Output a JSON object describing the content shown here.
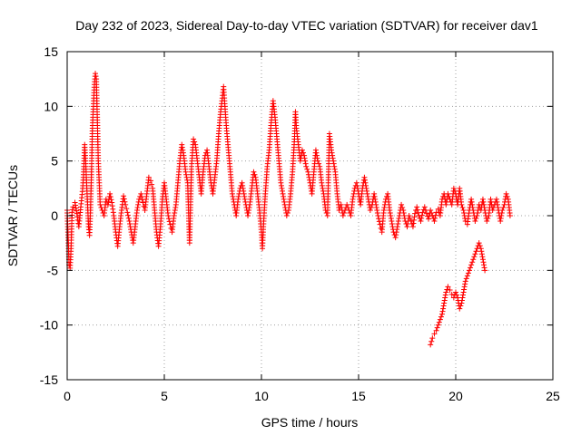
{
  "chart_data": {
    "type": "scatter",
    "title": "Day 232 of 2023, Sidereal Day-to-day VTEC variation (SDTVAR) for receiver dav1",
    "xlabel": "GPS time / hours",
    "ylabel": "SDTVAR / TECUs",
    "xlim": [
      0,
      25
    ],
    "ylim": [
      -15,
      15
    ],
    "xticks": [
      0,
      5,
      10,
      15,
      20,
      25
    ],
    "yticks": [
      -15,
      -10,
      -5,
      0,
      5,
      10,
      15
    ],
    "grid": true,
    "marker": "+",
    "color": "#ff0000",
    "series": [
      {
        "name": "SDTVAR",
        "points": [
          [
            0.0,
            0.5
          ],
          [
            0.05,
            -2.0
          ],
          [
            0.1,
            -4.5
          ],
          [
            0.15,
            -4.8
          ],
          [
            0.2,
            -3.0
          ],
          [
            0.25,
            0.3
          ],
          [
            0.3,
            0.8
          ],
          [
            0.4,
            1.2
          ],
          [
            0.5,
            0.2
          ],
          [
            0.6,
            -1.0
          ],
          [
            0.7,
            0.8
          ],
          [
            0.8,
            2.5
          ],
          [
            0.85,
            4.0
          ],
          [
            0.9,
            6.5
          ],
          [
            0.95,
            5.0
          ],
          [
            1.0,
            3.0
          ],
          [
            1.05,
            1.0
          ],
          [
            1.1,
            -1.0
          ],
          [
            1.15,
            -1.8
          ],
          [
            1.2,
            0.5
          ],
          [
            1.25,
            4.0
          ],
          [
            1.3,
            8.0
          ],
          [
            1.35,
            10.0
          ],
          [
            1.4,
            12.0
          ],
          [
            1.45,
            13.0
          ],
          [
            1.5,
            12.5
          ],
          [
            1.55,
            9.0
          ],
          [
            1.6,
            5.0
          ],
          [
            1.65,
            3.0
          ],
          [
            1.7,
            1.0
          ],
          [
            1.8,
            0.5
          ],
          [
            1.9,
            0.0
          ],
          [
            2.0,
            1.5
          ],
          [
            2.1,
            1.0
          ],
          [
            2.2,
            2.0
          ],
          [
            2.3,
            1.2
          ],
          [
            2.4,
            0.0
          ],
          [
            2.5,
            -1.5
          ],
          [
            2.6,
            -2.8
          ],
          [
            2.7,
            -1.0
          ],
          [
            2.8,
            0.5
          ],
          [
            2.9,
            1.8
          ],
          [
            3.0,
            1.0
          ],
          [
            3.1,
            0.3
          ],
          [
            3.2,
            -0.5
          ],
          [
            3.3,
            -1.5
          ],
          [
            3.4,
            -2.5
          ],
          [
            3.5,
            -1.0
          ],
          [
            3.6,
            0.5
          ],
          [
            3.7,
            1.5
          ],
          [
            3.8,
            2.0
          ],
          [
            3.9,
            1.2
          ],
          [
            4.0,
            0.5
          ],
          [
            4.1,
            2.0
          ],
          [
            4.2,
            3.5
          ],
          [
            4.3,
            3.2
          ],
          [
            4.4,
            2.5
          ],
          [
            4.5,
            0.5
          ],
          [
            4.6,
            -1.5
          ],
          [
            4.7,
            -2.8
          ],
          [
            4.8,
            -1.0
          ],
          [
            4.9,
            1.5
          ],
          [
            5.0,
            3.0
          ],
          [
            5.1,
            1.5
          ],
          [
            5.2,
            0.0
          ],
          [
            5.3,
            -0.8
          ],
          [
            5.4,
            -1.5
          ],
          [
            5.5,
            0.0
          ],
          [
            5.6,
            1.0
          ],
          [
            5.7,
            3.0
          ],
          [
            5.8,
            5.0
          ],
          [
            5.9,
            6.5
          ],
          [
            6.0,
            5.5
          ],
          [
            6.1,
            4.0
          ],
          [
            6.2,
            3.0
          ],
          [
            6.3,
            -2.5
          ],
          [
            6.4,
            4.5
          ],
          [
            6.5,
            7.0
          ],
          [
            6.6,
            6.5
          ],
          [
            6.7,
            5.0
          ],
          [
            6.8,
            3.5
          ],
          [
            6.9,
            2.0
          ],
          [
            7.0,
            4.0
          ],
          [
            7.1,
            5.5
          ],
          [
            7.2,
            6.0
          ],
          [
            7.3,
            4.5
          ],
          [
            7.4,
            3.0
          ],
          [
            7.5,
            2.0
          ],
          [
            7.6,
            3.5
          ],
          [
            7.7,
            5.0
          ],
          [
            7.8,
            7.5
          ],
          [
            7.9,
            9.5
          ],
          [
            8.0,
            11.0
          ],
          [
            8.05,
            11.8
          ],
          [
            8.1,
            10.5
          ],
          [
            8.2,
            8.0
          ],
          [
            8.3,
            6.0
          ],
          [
            8.4,
            4.0
          ],
          [
            8.5,
            2.0
          ],
          [
            8.6,
            1.0
          ],
          [
            8.7,
            0.0
          ],
          [
            8.8,
            1.5
          ],
          [
            8.9,
            2.5
          ],
          [
            9.0,
            3.0
          ],
          [
            9.1,
            2.0
          ],
          [
            9.2,
            1.0
          ],
          [
            9.3,
            0.0
          ],
          [
            9.4,
            1.0
          ],
          [
            9.5,
            2.5
          ],
          [
            9.6,
            4.0
          ],
          [
            9.7,
            3.5
          ],
          [
            9.8,
            2.0
          ],
          [
            9.9,
            0.5
          ],
          [
            10.0,
            -1.5
          ],
          [
            10.05,
            -3.0
          ],
          [
            10.1,
            -1.0
          ],
          [
            10.2,
            2.0
          ],
          [
            10.3,
            4.5
          ],
          [
            10.4,
            6.0
          ],
          [
            10.5,
            8.5
          ],
          [
            10.6,
            10.5
          ],
          [
            10.7,
            9.0
          ],
          [
            10.8,
            7.0
          ],
          [
            10.9,
            5.0
          ],
          [
            11.0,
            3.0
          ],
          [
            11.1,
            2.0
          ],
          [
            11.2,
            1.0
          ],
          [
            11.3,
            0.0
          ],
          [
            11.4,
            0.5
          ],
          [
            11.5,
            2.0
          ],
          [
            11.6,
            4.0
          ],
          [
            11.7,
            7.0
          ],
          [
            11.75,
            9.5
          ],
          [
            11.8,
            8.0
          ],
          [
            11.9,
            6.5
          ],
          [
            12.0,
            5.0
          ],
          [
            12.1,
            6.0
          ],
          [
            12.2,
            5.5
          ],
          [
            12.3,
            4.5
          ],
          [
            12.4,
            4.0
          ],
          [
            12.5,
            3.0
          ],
          [
            12.6,
            2.0
          ],
          [
            12.7,
            4.0
          ],
          [
            12.8,
            6.0
          ],
          [
            12.9,
            5.0
          ],
          [
            13.0,
            4.5
          ],
          [
            13.1,
            3.0
          ],
          [
            13.2,
            2.0
          ],
          [
            13.3,
            0.5
          ],
          [
            13.4,
            0.0
          ],
          [
            13.5,
            7.5
          ],
          [
            13.6,
            6.0
          ],
          [
            13.7,
            5.0
          ],
          [
            13.8,
            4.0
          ],
          [
            13.9,
            2.0
          ],
          [
            14.0,
            0.5
          ],
          [
            14.1,
            1.0
          ],
          [
            14.2,
            0.0
          ],
          [
            14.3,
            0.5
          ],
          [
            14.4,
            1.0
          ],
          [
            14.5,
            0.5
          ],
          [
            14.6,
            0.0
          ],
          [
            14.7,
            1.5
          ],
          [
            14.8,
            2.5
          ],
          [
            14.9,
            3.0
          ],
          [
            15.0,
            2.0
          ],
          [
            15.1,
            1.0
          ],
          [
            15.2,
            2.5
          ],
          [
            15.3,
            3.5
          ],
          [
            15.4,
            2.5
          ],
          [
            15.5,
            1.5
          ],
          [
            15.6,
            0.5
          ],
          [
            15.7,
            1.0
          ],
          [
            15.8,
            2.0
          ],
          [
            15.9,
            1.0
          ],
          [
            16.0,
            0.0
          ],
          [
            16.1,
            -0.8
          ],
          [
            16.2,
            -1.5
          ],
          [
            16.3,
            0.5
          ],
          [
            16.4,
            1.5
          ],
          [
            16.5,
            2.0
          ],
          [
            16.6,
            0.5
          ],
          [
            16.7,
            -0.5
          ],
          [
            16.8,
            -1.5
          ],
          [
            16.9,
            -2.0
          ],
          [
            17.0,
            -1.0
          ],
          [
            17.1,
            0.0
          ],
          [
            17.2,
            1.0
          ],
          [
            17.3,
            0.5
          ],
          [
            17.4,
            -0.5
          ],
          [
            17.5,
            -1.0
          ],
          [
            17.6,
            0.0
          ],
          [
            17.7,
            -0.5
          ],
          [
            17.8,
            -1.0
          ],
          [
            17.9,
            0.2
          ],
          [
            18.0,
            0.8
          ],
          [
            18.1,
            0.0
          ],
          [
            18.2,
            -0.5
          ],
          [
            18.3,
            0.3
          ],
          [
            18.4,
            0.8
          ],
          [
            18.5,
            0.2
          ],
          [
            18.6,
            -0.3
          ],
          [
            18.7,
            0.5
          ],
          [
            18.8,
            0.0
          ],
          [
            18.9,
            -0.5
          ],
          [
            19.0,
            0.3
          ],
          [
            19.1,
            0.6
          ],
          [
            19.2,
            0.0
          ],
          [
            19.3,
            1.5
          ],
          [
            19.4,
            2.0
          ],
          [
            19.5,
            1.0
          ],
          [
            19.6,
            2.0
          ],
          [
            19.7,
            1.5
          ],
          [
            19.8,
            1.0
          ],
          [
            19.9,
            2.5
          ],
          [
            20.0,
            2.0
          ],
          [
            20.1,
            1.0
          ],
          [
            20.2,
            2.5
          ],
          [
            20.3,
            1.0
          ],
          [
            20.4,
            0.5
          ],
          [
            20.5,
            -0.5
          ],
          [
            20.6,
            -0.8
          ],
          [
            20.7,
            0.5
          ],
          [
            20.8,
            1.5
          ],
          [
            20.9,
            0.5
          ],
          [
            21.0,
            -0.5
          ],
          [
            21.1,
            0.0
          ],
          [
            21.2,
            1.0
          ],
          [
            21.3,
            0.5
          ],
          [
            21.4,
            1.5
          ],
          [
            21.5,
            0.5
          ],
          [
            21.6,
            -0.5
          ],
          [
            21.7,
            0.0
          ],
          [
            21.8,
            1.5
          ],
          [
            21.9,
            0.5
          ],
          [
            22.0,
            1.0
          ],
          [
            22.1,
            1.5
          ],
          [
            22.2,
            0.5
          ],
          [
            22.3,
            -0.5
          ],
          [
            22.4,
            0.5
          ],
          [
            22.5,
            1.0
          ],
          [
            22.6,
            2.0
          ],
          [
            22.7,
            1.5
          ],
          [
            22.8,
            0.0
          ],
          [
            18.7,
            -11.8
          ],
          [
            18.8,
            -11.2
          ],
          [
            18.9,
            -10.8
          ],
          [
            19.0,
            -10.5
          ],
          [
            19.1,
            -10.0
          ],
          [
            19.2,
            -9.5
          ],
          [
            19.3,
            -9.0
          ],
          [
            19.4,
            -8.0
          ],
          [
            19.5,
            -7.0
          ],
          [
            19.6,
            -6.5
          ],
          [
            19.7,
            -6.8
          ],
          [
            19.8,
            -7.2
          ],
          [
            19.9,
            -7.5
          ],
          [
            20.0,
            -7.0
          ],
          [
            20.1,
            -7.5
          ],
          [
            20.2,
            -8.5
          ],
          [
            20.3,
            -8.0
          ],
          [
            20.4,
            -7.0
          ],
          [
            20.5,
            -6.0
          ],
          [
            20.6,
            -5.5
          ],
          [
            20.7,
            -5.0
          ],
          [
            20.8,
            -4.5
          ],
          [
            20.9,
            -4.0
          ],
          [
            21.0,
            -3.5
          ],
          [
            21.1,
            -3.0
          ],
          [
            21.2,
            -2.5
          ],
          [
            21.3,
            -3.0
          ],
          [
            21.4,
            -4.0
          ],
          [
            21.5,
            -5.0
          ]
        ]
      }
    ]
  }
}
